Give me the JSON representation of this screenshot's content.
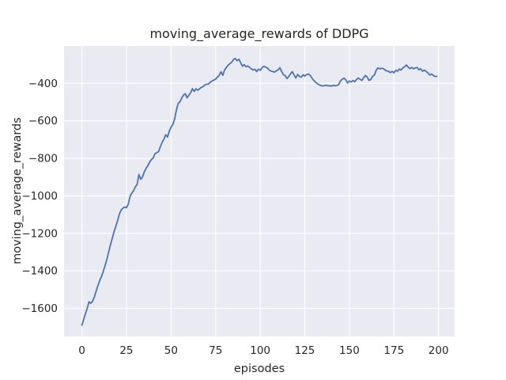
{
  "figure": {
    "background": "#ffffff"
  },
  "chart_data": {
    "type": "line",
    "title": "moving_average_rewards of DDPG",
    "xlabel": "episodes",
    "ylabel": "moving_average_rewards",
    "x_ticks": [
      0,
      25,
      50,
      75,
      100,
      125,
      150,
      175,
      200
    ],
    "y_ticks": [
      -400,
      -600,
      -800,
      -1000,
      -1200,
      -1400,
      -1600
    ],
    "xlim": [
      -10,
      209
    ],
    "ylim": [
      -1750,
      -200
    ],
    "grid": true,
    "legend_position": "none",
    "axes_background": "#eaeaf2",
    "grid_color": "#ffffff",
    "text_color": "#262626",
    "series": [
      {
        "name": "DDPG moving average rewards",
        "color": "#4c72b0",
        "line_width": 1.8,
        "x": [
          0,
          1,
          2,
          3,
          4,
          5,
          6,
          7,
          8,
          9,
          10,
          11,
          12,
          13,
          14,
          15,
          16,
          17,
          18,
          19,
          20,
          21,
          22,
          23,
          24,
          25,
          26,
          27,
          28,
          29,
          30,
          31,
          32,
          33,
          34,
          35,
          36,
          37,
          38,
          39,
          40,
          41,
          42,
          43,
          44,
          45,
          46,
          47,
          48,
          49,
          50,
          51,
          52,
          53,
          54,
          55,
          56,
          57,
          58,
          59,
          60,
          61,
          62,
          63,
          64,
          65,
          66,
          67,
          68,
          69,
          70,
          71,
          72,
          73,
          74,
          75,
          76,
          77,
          78,
          79,
          80,
          81,
          82,
          83,
          84,
          85,
          86,
          87,
          88,
          89,
          90,
          91,
          92,
          93,
          94,
          95,
          96,
          97,
          98,
          99,
          100,
          101,
          102,
          103,
          104,
          105,
          106,
          107,
          108,
          109,
          110,
          111,
          112,
          113,
          114,
          115,
          116,
          117,
          118,
          119,
          120,
          121,
          122,
          123,
          124,
          125,
          126,
          127,
          128,
          129,
          130,
          131,
          132,
          133,
          134,
          135,
          136,
          137,
          138,
          139,
          140,
          141,
          142,
          143,
          144,
          145,
          146,
          147,
          148,
          149,
          150,
          151,
          152,
          153,
          154,
          155,
          156,
          157,
          158,
          159,
          160,
          161,
          162,
          163,
          164,
          165,
          166,
          167,
          168,
          169,
          170,
          171,
          172,
          173,
          174,
          175,
          176,
          177,
          178,
          179,
          180,
          181,
          182,
          183,
          184,
          185,
          186,
          187,
          188,
          189,
          190,
          191,
          192,
          193,
          194,
          195,
          196,
          197,
          198,
          199
        ],
        "values": [
          -1690,
          -1660,
          -1628,
          -1600,
          -1565,
          -1573,
          -1562,
          -1540,
          -1508,
          -1478,
          -1452,
          -1430,
          -1403,
          -1372,
          -1340,
          -1300,
          -1263,
          -1228,
          -1192,
          -1163,
          -1133,
          -1098,
          -1075,
          -1066,
          -1060,
          -1063,
          -1045,
          -1002,
          -985,
          -972,
          -952,
          -938,
          -886,
          -912,
          -898,
          -872,
          -853,
          -838,
          -820,
          -806,
          -798,
          -775,
          -770,
          -763,
          -738,
          -714,
          -698,
          -674,
          -686,
          -655,
          -634,
          -618,
          -590,
          -542,
          -506,
          -498,
          -478,
          -462,
          -455,
          -477,
          -463,
          -449,
          -428,
          -443,
          -429,
          -436,
          -429,
          -421,
          -417,
          -407,
          -405,
          -403,
          -393,
          -387,
          -382,
          -378,
          -366,
          -357,
          -338,
          -357,
          -329,
          -315,
          -303,
          -294,
          -287,
          -273,
          -267,
          -279,
          -271,
          -289,
          -308,
          -300,
          -311,
          -307,
          -314,
          -322,
          -329,
          -324,
          -337,
          -324,
          -330,
          -317,
          -309,
          -313,
          -317,
          -329,
          -334,
          -337,
          -340,
          -333,
          -328,
          -316,
          -336,
          -354,
          -359,
          -374,
          -364,
          -349,
          -337,
          -356,
          -371,
          -352,
          -363,
          -367,
          -354,
          -361,
          -353,
          -350,
          -357,
          -371,
          -384,
          -394,
          -401,
          -407,
          -411,
          -414,
          -411,
          -410,
          -413,
          -412,
          -414,
          -410,
          -413,
          -411,
          -406,
          -387,
          -378,
          -372,
          -381,
          -398,
          -387,
          -392,
          -385,
          -391,
          -379,
          -371,
          -378,
          -384,
          -369,
          -358,
          -366,
          -384,
          -379,
          -362,
          -356,
          -331,
          -317,
          -322,
          -319,
          -321,
          -329,
          -333,
          -336,
          -342,
          -336,
          -343,
          -330,
          -335,
          -323,
          -329,
          -317,
          -311,
          -302,
          -314,
          -321,
          -315,
          -322,
          -317,
          -315,
          -328,
          -322,
          -335,
          -329,
          -336,
          -343,
          -356,
          -350,
          -357,
          -363,
          -362
        ]
      }
    ]
  }
}
